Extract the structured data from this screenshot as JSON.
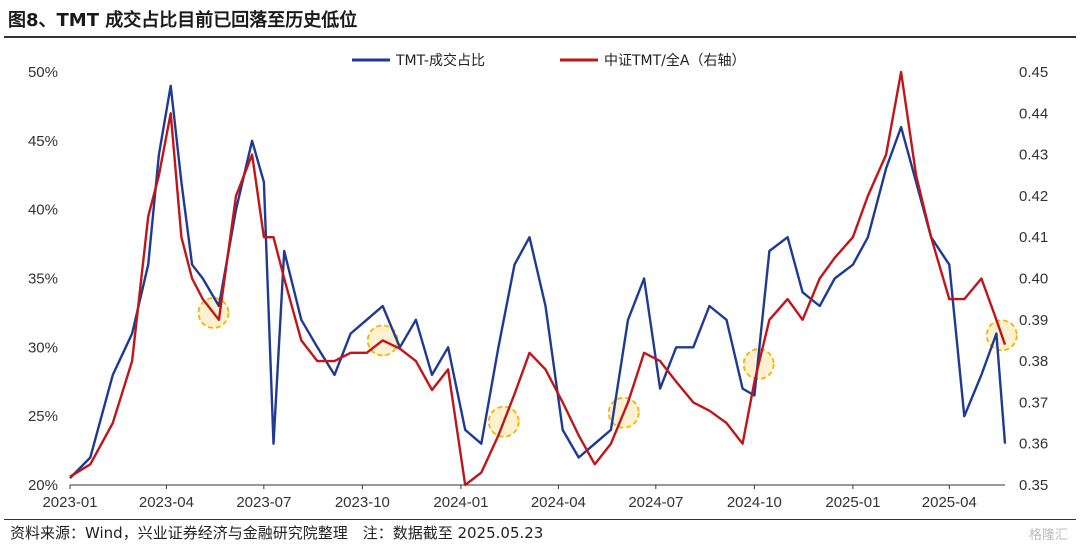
{
  "title": "图8、TMT 成交占比目前已回落至历史低位",
  "source": "资料来源：Wind，兴业证券经济与金融研究院整理　注：数据截至 2025.05.23",
  "watermark": "格隆汇",
  "colors": {
    "series1": "#1f3a93",
    "series2": "#c0161a",
    "highlight": "#f5b400"
  },
  "chart_data": {
    "type": "line",
    "title": "",
    "x_ticks": [
      "2023-01",
      "2023-04",
      "2023-07",
      "2023-10",
      "2024-01",
      "2024-04",
      "2024-07",
      "2024-10",
      "2025-01",
      "2025-04"
    ],
    "xlim": [
      "2023-01-01",
      "2025-05-23"
    ],
    "y_left": {
      "ticks": [
        "20%",
        "25%",
        "30%",
        "35%",
        "40%",
        "45%",
        "50%"
      ],
      "lim": [
        0.2,
        0.5
      ]
    },
    "y_right": {
      "ticks": [
        "0.35",
        "0.36",
        "0.37",
        "0.38",
        "0.39",
        "0.40",
        "0.41",
        "0.42",
        "0.43",
        "0.44",
        "0.45"
      ],
      "lim": [
        0.35,
        0.45
      ]
    },
    "legend_position": "top-center",
    "grid": false,
    "series": [
      {
        "name": "TMT-成交占比",
        "axis": "left",
        "x": [
          "2023-01-01",
          "2023-01-20",
          "2023-02-10",
          "2023-02-28",
          "2023-03-15",
          "2023-03-25",
          "2023-04-05",
          "2023-04-15",
          "2023-04-25",
          "2023-05-05",
          "2023-05-20",
          "2023-06-05",
          "2023-06-20",
          "2023-07-01",
          "2023-07-10",
          "2023-07-20",
          "2023-08-05",
          "2023-08-20",
          "2023-09-05",
          "2023-09-20",
          "2023-10-05",
          "2023-10-20",
          "2023-11-05",
          "2023-11-20",
          "2023-12-05",
          "2023-12-20",
          "2024-01-05",
          "2024-01-20",
          "2024-02-05",
          "2024-02-20",
          "2024-03-05",
          "2024-03-20",
          "2024-04-05",
          "2024-04-20",
          "2024-05-05",
          "2024-05-20",
          "2024-06-05",
          "2024-06-20",
          "2024-07-05",
          "2024-07-20",
          "2024-08-05",
          "2024-08-20",
          "2024-09-05",
          "2024-09-20",
          "2024-10-01",
          "2024-10-15",
          "2024-11-01",
          "2024-11-15",
          "2024-12-01",
          "2024-12-15",
          "2025-01-01",
          "2025-01-15",
          "2025-02-01",
          "2025-02-15",
          "2025-03-01",
          "2025-03-15",
          "2025-04-01",
          "2025-04-15",
          "2025-05-01",
          "2025-05-15",
          "2025-05-23"
        ],
        "values": [
          0.205,
          0.22,
          0.28,
          0.31,
          0.36,
          0.44,
          0.49,
          0.42,
          0.36,
          0.35,
          0.33,
          0.4,
          0.45,
          0.42,
          0.23,
          0.37,
          0.32,
          0.3,
          0.28,
          0.31,
          0.32,
          0.33,
          0.3,
          0.32,
          0.28,
          0.3,
          0.24,
          0.23,
          0.3,
          0.36,
          0.38,
          0.33,
          0.24,
          0.22,
          0.23,
          0.24,
          0.32,
          0.35,
          0.27,
          0.3,
          0.3,
          0.33,
          0.32,
          0.27,
          0.265,
          0.37,
          0.38,
          0.34,
          0.33,
          0.35,
          0.36,
          0.38,
          0.43,
          0.46,
          0.42,
          0.38,
          0.36,
          0.25,
          0.28,
          0.31,
          0.23
        ]
      },
      {
        "name": "中证TMT/全A（右轴）",
        "axis": "right",
        "x": [
          "2023-01-01",
          "2023-01-20",
          "2023-02-10",
          "2023-02-28",
          "2023-03-15",
          "2023-03-25",
          "2023-04-05",
          "2023-04-15",
          "2023-04-25",
          "2023-05-05",
          "2023-05-20",
          "2023-06-05",
          "2023-06-20",
          "2023-07-01",
          "2023-07-10",
          "2023-07-20",
          "2023-08-05",
          "2023-08-20",
          "2023-09-05",
          "2023-09-20",
          "2023-10-05",
          "2023-10-20",
          "2023-11-05",
          "2023-11-20",
          "2023-12-05",
          "2023-12-20",
          "2024-01-05",
          "2024-01-20",
          "2024-02-05",
          "2024-02-20",
          "2024-03-05",
          "2024-03-20",
          "2024-04-05",
          "2024-04-20",
          "2024-05-05",
          "2024-05-20",
          "2024-06-05",
          "2024-06-20",
          "2024-07-05",
          "2024-07-20",
          "2024-08-05",
          "2024-08-20",
          "2024-09-05",
          "2024-09-20",
          "2024-10-01",
          "2024-10-15",
          "2024-11-01",
          "2024-11-15",
          "2024-12-01",
          "2024-12-15",
          "2025-01-01",
          "2025-01-15",
          "2025-02-01",
          "2025-02-15",
          "2025-03-01",
          "2025-03-15",
          "2025-04-01",
          "2025-04-15",
          "2025-05-01",
          "2025-05-15",
          "2025-05-23"
        ],
        "values": [
          0.352,
          0.355,
          0.365,
          0.38,
          0.415,
          0.425,
          0.44,
          0.41,
          0.4,
          0.395,
          0.39,
          0.42,
          0.43,
          0.41,
          0.41,
          0.4,
          0.385,
          0.38,
          0.38,
          0.382,
          0.382,
          0.385,
          0.383,
          0.38,
          0.373,
          0.378,
          0.35,
          0.353,
          0.362,
          0.372,
          0.382,
          0.378,
          0.37,
          0.362,
          0.355,
          0.36,
          0.37,
          0.382,
          0.38,
          0.375,
          0.37,
          0.368,
          0.365,
          0.36,
          0.375,
          0.39,
          0.395,
          0.39,
          0.4,
          0.405,
          0.41,
          0.42,
          0.43,
          0.45,
          0.425,
          0.41,
          0.395,
          0.395,
          0.4,
          0.39,
          0.384
        ]
      }
    ],
    "annotations": [
      "2023-05-15",
      "2023-10-20",
      "2024-02-10",
      "2024-06-01",
      "2024-10-05",
      "2025-05-20"
    ]
  }
}
